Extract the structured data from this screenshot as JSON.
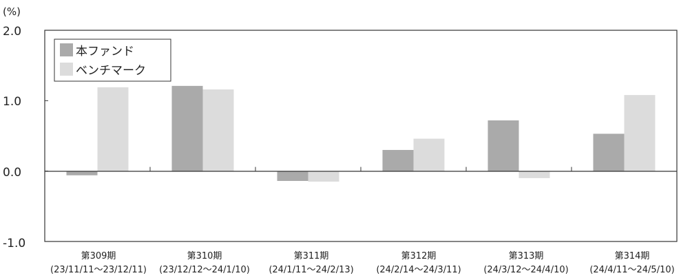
{
  "chart_data": {
    "type": "bar",
    "unit_label": "(%)",
    "categories": [
      {
        "period": "第309期",
        "range": "(23/11/11～23/12/11)"
      },
      {
        "period": "第310期",
        "range": "(23/12/12～24/1/10)"
      },
      {
        "period": "第311期",
        "range": "(24/1/11～24/2/13)"
      },
      {
        "period": "第312期",
        "range": "(24/2/14～24/3/11)"
      },
      {
        "period": "第313期",
        "range": "(24/3/12～24/4/10)"
      },
      {
        "period": "第314期",
        "range": "(24/4/11～24/5/10)"
      }
    ],
    "series": [
      {
        "name": "本ファンド",
        "color": "#aaaaaa",
        "values": [
          -0.06,
          1.21,
          -0.14,
          0.3,
          0.72,
          0.53
        ]
      },
      {
        "name": "ベンチマーク",
        "color": "#dcdcdc",
        "values": [
          1.19,
          1.16,
          -0.15,
          0.46,
          -0.1,
          1.08
        ]
      }
    ],
    "ylim": [
      -1.0,
      2.0
    ],
    "yticks": [
      "2.0",
      "1.0",
      "0.0",
      "-1.0"
    ],
    "legend_position": "top-left",
    "grid": false
  }
}
